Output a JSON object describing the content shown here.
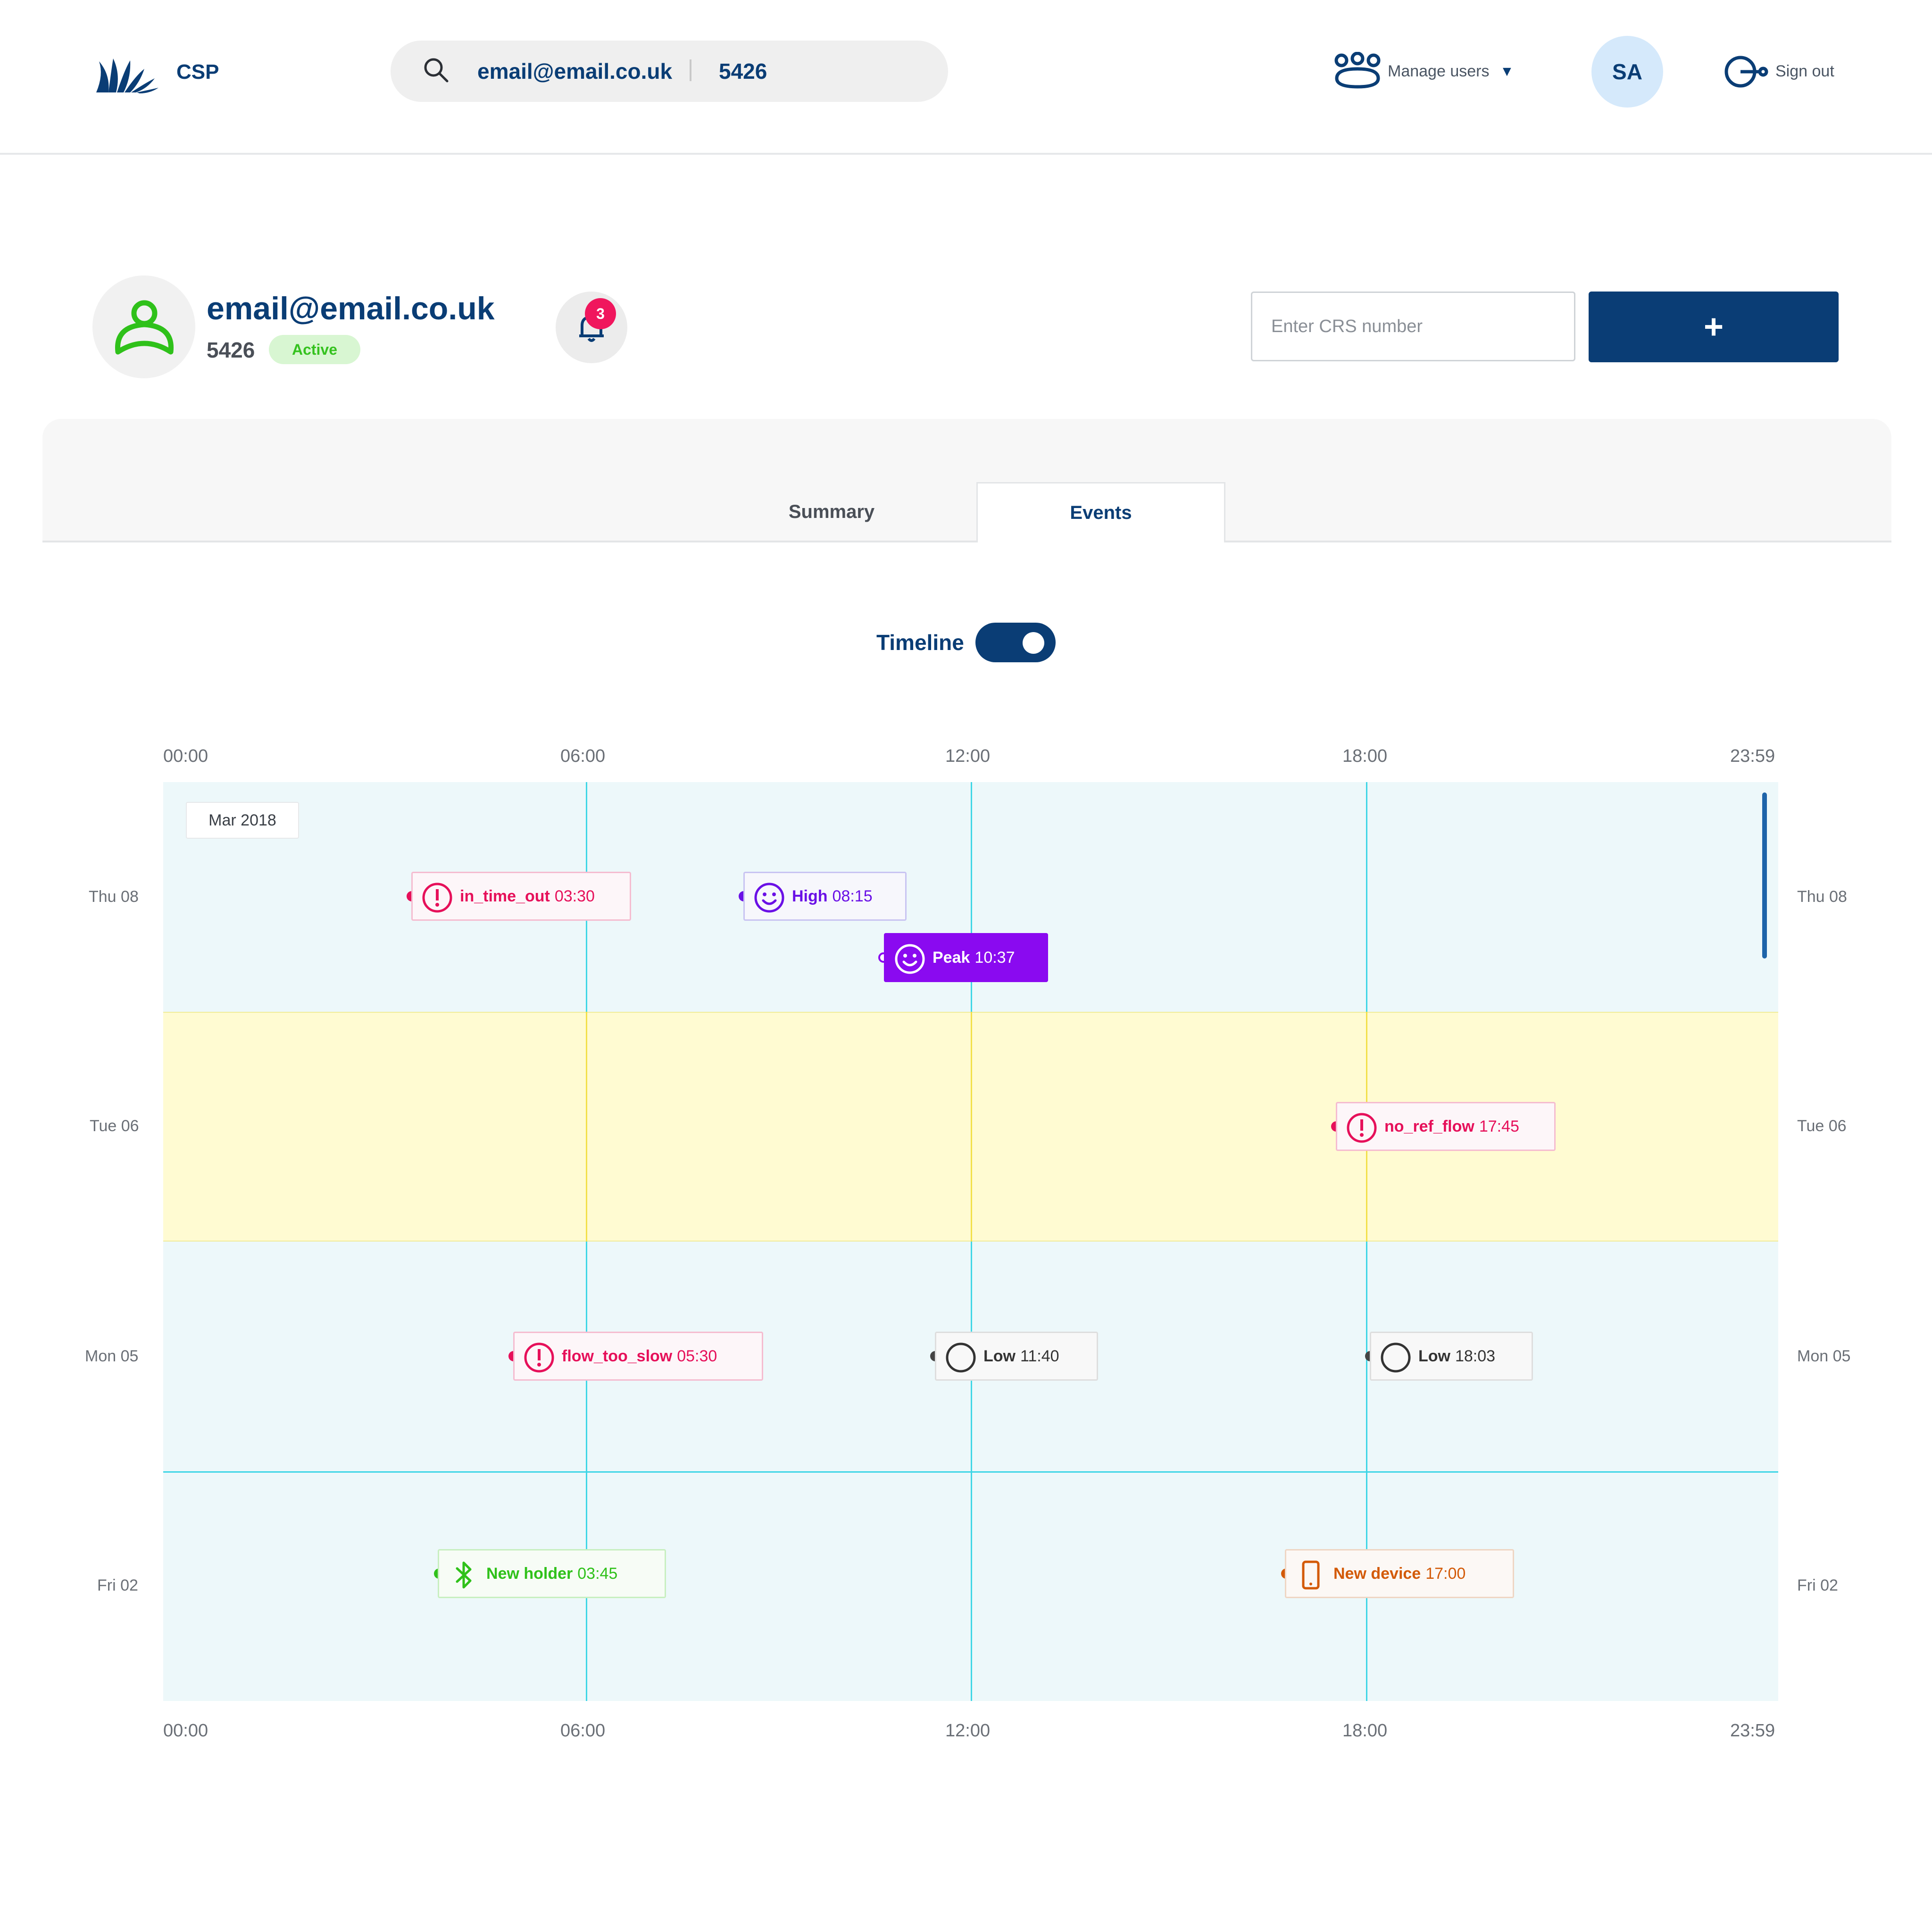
{
  "header": {
    "brand": "CSP",
    "search": {
      "email": "email@email.co.uk",
      "id": "5426"
    },
    "manage_users": "Manage users",
    "manage_caret": "▼",
    "avatar_initials": "SA",
    "sign_out": "Sign out"
  },
  "profile": {
    "email": "email@email.co.uk",
    "id": "5426",
    "status": "Active",
    "notification_count": "3",
    "crs_placeholder": "Enter CRS number",
    "add_label": "+"
  },
  "tabs": [
    {
      "label": "Summary",
      "active": false
    },
    {
      "label": "Events",
      "active": true
    }
  ],
  "timeline": {
    "label": "Timeline",
    "enabled": true,
    "month": "Mar 2018",
    "hours": [
      "00:00",
      "06:00",
      "12:00",
      "18:00",
      "23:59"
    ],
    "days": [
      "Thu 08",
      "Tue 06",
      "Mon 05",
      "Fri 02"
    ]
  },
  "colors": {
    "brand_navy": "#0a3d75",
    "alert": "#e6105a",
    "mood": "#6a10e6",
    "peak": "#8a0af0",
    "neutral": "#333333",
    "bluetooth": "#2fc11a",
    "device": "#d35a08",
    "band_default": "#edf8fa",
    "band_highlight": "#fffbd2"
  },
  "events": {
    "in_time_out": {
      "name": "in_time_out",
      "time": "03:30",
      "icon": "alert-icon"
    },
    "high": {
      "name": "High",
      "time": "08:15",
      "icon": "smiley-icon"
    },
    "peak": {
      "name": "Peak",
      "time": "10:37",
      "icon": "smiley-icon"
    },
    "no_ref_flow": {
      "name": "no_ref_flow",
      "time": "17:45",
      "icon": "alert-icon"
    },
    "flow_too_slow": {
      "name": "flow_too_slow",
      "time": "05:30",
      "icon": "alert-icon"
    },
    "low_1": {
      "name": "Low",
      "time": "11:40",
      "icon": "circle-icon"
    },
    "low_2": {
      "name": "Low",
      "time": "18:03",
      "icon": "circle-icon"
    },
    "new_holder": {
      "name": "New holder",
      "time": "03:45",
      "icon": "bluetooth-icon"
    },
    "new_device": {
      "name": "New device",
      "time": "17:00",
      "icon": "phone-icon"
    }
  }
}
